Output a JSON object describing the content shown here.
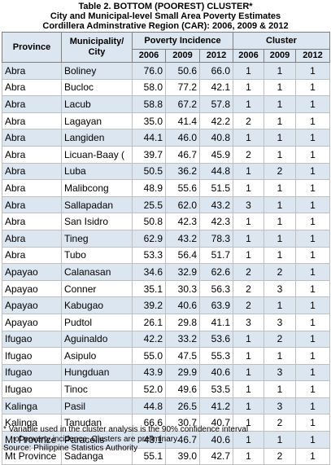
{
  "title": "Table 2.  BOTTOM (POOREST) CLUSTER*",
  "subtitle1": "City and Municipal-level Small Area Poverty Estimates",
  "subtitle2": "Cordillera Adminstrative Region (CAR): 2006, 2009 & 2012",
  "headers": {
    "province": "Province",
    "municipality": "Municipality/ City",
    "poverty_incidence": "Poverty Incidence",
    "cluster": "Cluster",
    "years": [
      "2006",
      "2009",
      "2012"
    ]
  },
  "rows": [
    {
      "province": "Abra",
      "city": "Boliney",
      "pi": [
        "76.0",
        "50.6",
        "66.0"
      ],
      "cl": [
        "1",
        "1",
        "1"
      ]
    },
    {
      "province": "Abra",
      "city": "Bucloc",
      "pi": [
        "58.0",
        "77.2",
        "42.1"
      ],
      "cl": [
        "1",
        "1",
        "1"
      ]
    },
    {
      "province": "Abra",
      "city": "Lacub",
      "pi": [
        "58.8",
        "67.2",
        "57.8"
      ],
      "cl": [
        "1",
        "1",
        "1"
      ]
    },
    {
      "province": "Abra",
      "city": "Lagayan",
      "pi": [
        "35.0",
        "41.4",
        "42.2"
      ],
      "cl": [
        "2",
        "1",
        "1"
      ]
    },
    {
      "province": "Abra",
      "city": "Langiden",
      "pi": [
        "44.1",
        "46.0",
        "40.8"
      ],
      "cl": [
        "1",
        "1",
        "1"
      ]
    },
    {
      "province": "Abra",
      "city": "Licuan-Baay (",
      "pi": [
        "39.7",
        "46.7",
        "45.9"
      ],
      "cl": [
        "2",
        "1",
        "1"
      ]
    },
    {
      "province": "Abra",
      "city": "Luba",
      "pi": [
        "50.5",
        "36.2",
        "44.8"
      ],
      "cl": [
        "1",
        "2",
        "1"
      ]
    },
    {
      "province": "Abra",
      "city": "Malibcong",
      "pi": [
        "48.9",
        "55.6",
        "51.5"
      ],
      "cl": [
        "1",
        "1",
        "1"
      ]
    },
    {
      "province": "Abra",
      "city": "Sallapadan",
      "pi": [
        "25.5",
        "62.0",
        "43.2"
      ],
      "cl": [
        "3",
        "1",
        "1"
      ]
    },
    {
      "province": "Abra",
      "city": "San Isidro",
      "pi": [
        "50.8",
        "42.3",
        "42.3"
      ],
      "cl": [
        "1",
        "1",
        "1"
      ]
    },
    {
      "province": "Abra",
      "city": "Tineg",
      "pi": [
        "62.9",
        "43.2",
        "78.3"
      ],
      "cl": [
        "1",
        "1",
        "1"
      ]
    },
    {
      "province": "Abra",
      "city": "Tubo",
      "pi": [
        "53.3",
        "56.4",
        "51.7"
      ],
      "cl": [
        "1",
        "1",
        "1"
      ]
    },
    {
      "province": "Apayao",
      "city": "Calanasan",
      "pi": [
        "34.6",
        "32.9",
        "62.6"
      ],
      "cl": [
        "2",
        "2",
        "1"
      ]
    },
    {
      "province": "Apayao",
      "city": "Conner",
      "pi": [
        "35.1",
        "30.3",
        "56.3"
      ],
      "cl": [
        "2",
        "3",
        "1"
      ]
    },
    {
      "province": "Apayao",
      "city": "Kabugao",
      "pi": [
        "39.2",
        "40.6",
        "63.9"
      ],
      "cl": [
        "2",
        "1",
        "1"
      ]
    },
    {
      "province": "Apayao",
      "city": "Pudtol",
      "pi": [
        "26.1",
        "29.8",
        "41.1"
      ],
      "cl": [
        "3",
        "3",
        "1"
      ]
    },
    {
      "province": "Ifugao",
      "city": "Aguinaldo",
      "pi": [
        "42.2",
        "33.2",
        "53.6"
      ],
      "cl": [
        "1",
        "2",
        "1"
      ]
    },
    {
      "province": "Ifugao",
      "city": "Asipulo",
      "pi": [
        "55.0",
        "47.5",
        "55.3"
      ],
      "cl": [
        "1",
        "1",
        "1"
      ]
    },
    {
      "province": "Ifugao",
      "city": "Hungduan",
      "pi": [
        "43.9",
        "29.9",
        "40.6"
      ],
      "cl": [
        "1",
        "3",
        "1"
      ]
    },
    {
      "province": "Ifugao",
      "city": "Tinoc",
      "pi": [
        "52.0",
        "49.6",
        "53.5"
      ],
      "cl": [
        "1",
        "1",
        "1"
      ]
    },
    {
      "province": "Kalinga",
      "city": "Pasil",
      "pi": [
        "44.8",
        "26.5",
        "41.2"
      ],
      "cl": [
        "1",
        "3",
        "1"
      ]
    },
    {
      "province": "Kalinga",
      "city": "Tanudan",
      "pi": [
        "66.6",
        "30.7",
        "40.7"
      ],
      "cl": [
        "1",
        "2",
        "1"
      ]
    },
    {
      "province": "Mt Province",
      "city": "Paracelis",
      "pi": [
        "43.1",
        "46.7",
        "40.6"
      ],
      "cl": [
        "1",
        "1",
        "1"
      ]
    },
    {
      "province": "Mt Province",
      "city": "Sadanga",
      "pi": [
        "55.1",
        "39.0",
        "42.7"
      ],
      "cl": [
        "1",
        "2",
        "1"
      ]
    }
  ],
  "footnote1": "* Variable used in the cluster analysis is the 90% confidence interval",
  "footnote2": "of poverty incidence.  Clusters are preliminary.",
  "source": "Source: Philippine Statistics Authority",
  "colors": {
    "header_fill": "#dce6f1",
    "band_fill": "#dce6f1"
  }
}
